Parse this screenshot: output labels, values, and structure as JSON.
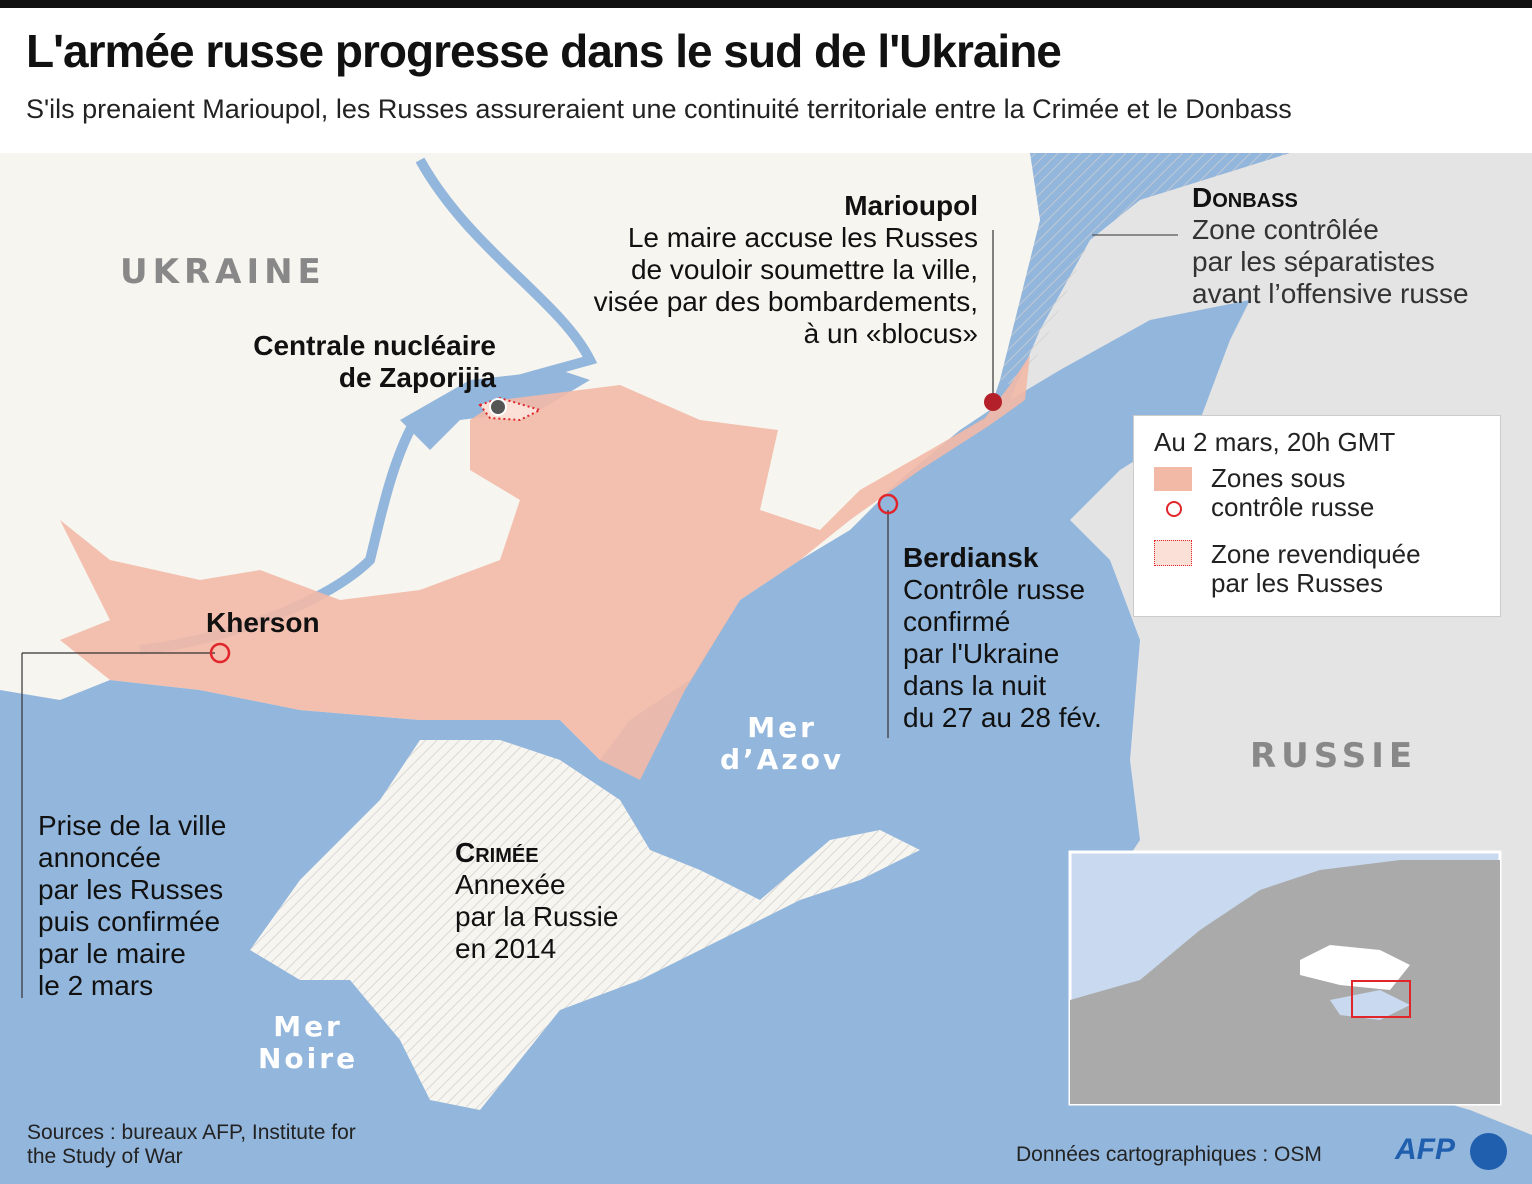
{
  "header": {
    "title": "L'armée russe progresse dans le sud de l'Ukraine",
    "subtitle": "S'ils prenaient Marioupol, les Russes assureraient une continuité territoriale entre la Crimée et le Donbass"
  },
  "colors": {
    "sea": "#93b6dc",
    "land": "#f7f5ef",
    "russia": "#e4e4e4",
    "russian_control": "#f2b9a6",
    "city_marker": "#e0262b",
    "mariupol_marker": "#b3202a"
  },
  "labels": {
    "ukraine": "UKRAINE",
    "russie": "RUSSIE",
    "mer_azov": [
      "Mer",
      "d’Azov"
    ],
    "mer_noire": [
      "Mer",
      "Noire"
    ],
    "centrale": [
      "Centrale nucléaire",
      "de Zaporijia"
    ],
    "kherson": "Kherson",
    "kherson_note": [
      "Prise de la ville",
      "annoncée",
      "par les Russes",
      "puis confirmée",
      "par le maire",
      "le 2 mars"
    ],
    "marioupol": "Marioupol",
    "marioupol_note": [
      "Le maire accuse les Russes",
      "de vouloir soumettre la ville,",
      "visée par des bombardements,",
      "à un «blocus»"
    ],
    "berdiansk": "Berdiansk",
    "berdiansk_note": [
      "Contrôle russe",
      "confirmé",
      "par l'Ukraine",
      "dans la nuit",
      "du 27 au 28 fév."
    ],
    "crimee": "Crimée",
    "crimee_note": [
      "Annexée",
      "par la Russie",
      "en 2014"
    ],
    "donbass": "Donbass",
    "donbass_note": [
      "Zone contrôlée",
      "par les séparatistes",
      "avant l’offensive russe"
    ]
  },
  "legend": {
    "date": "Au 2 mars, 20h GMT",
    "items": [
      {
        "label": [
          "Zones sous",
          "contrôle russe"
        ]
      },
      {
        "label": [
          "Zone revendiquée",
          "par les Russes"
        ]
      }
    ]
  },
  "footer": {
    "sources": [
      "Sources : bureaux AFP, Institute for",
      "the Study of War"
    ],
    "data_credit": "Données cartographiques : OSM",
    "logo": "AFP"
  }
}
